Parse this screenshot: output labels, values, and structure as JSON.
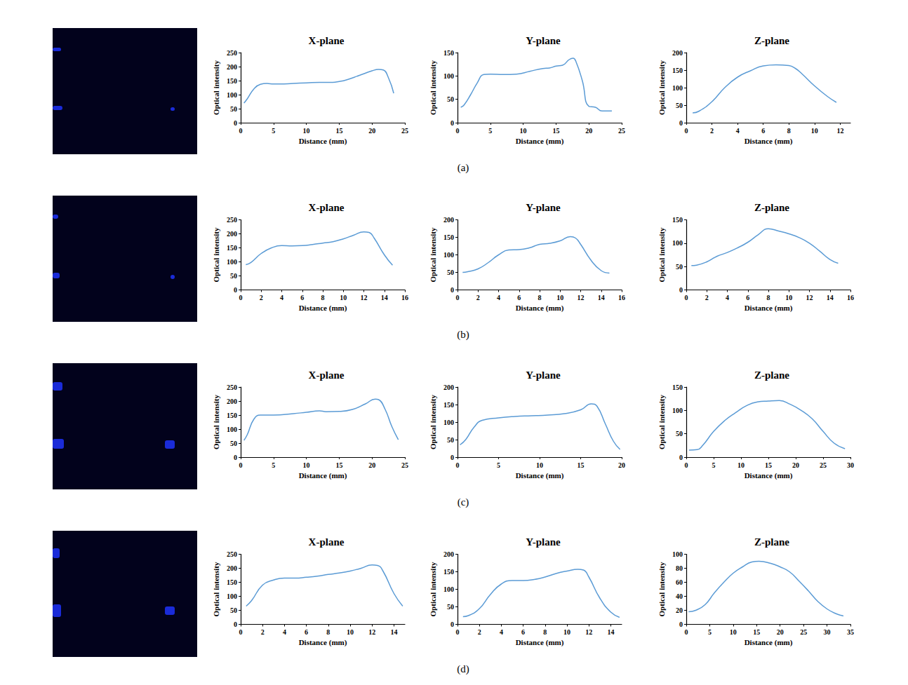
{
  "panel_labels": [
    "(a)",
    "(b)",
    "(c)",
    "(d)"
  ],
  "chart_data": [
    {
      "type": "line",
      "title": "X-plane",
      "xlabel": "Distance (mm)",
      "ylabel": "Optical intensity",
      "color": "#5b9bd5",
      "grid": false,
      "x": [
        0.5,
        1,
        2,
        3,
        4,
        5,
        6,
        8,
        10,
        12,
        14,
        15,
        16,
        18,
        20,
        21,
        21.7,
        22.5,
        23.3
      ],
      "values": [
        70,
        85,
        120,
        137,
        140,
        138,
        138,
        140,
        142,
        144,
        144,
        147,
        152,
        168,
        185,
        190,
        188,
        160,
        105
      ],
      "xlim": [
        0,
        25
      ],
      "xticks": [
        0,
        5,
        10,
        15,
        20,
        25
      ],
      "ylim": [
        0,
        250
      ],
      "yticks": [
        0,
        50,
        100,
        150,
        200,
        250
      ]
    },
    {
      "type": "line",
      "title": "Y-plane",
      "xlabel": "Distance (mm)",
      "ylabel": "Optical intensity",
      "color": "#5b9bd5",
      "grid": false,
      "x": [
        0.5,
        1,
        2,
        3,
        4,
        5,
        7,
        9,
        11,
        13,
        14,
        15,
        16,
        17,
        17.6,
        18,
        19,
        20,
        21,
        22,
        23.5
      ],
      "values": [
        33,
        38,
        60,
        85,
        103,
        104,
        103,
        104,
        110,
        116,
        117,
        121,
        123,
        135,
        138,
        132,
        90,
        35,
        33,
        25,
        25
      ],
      "xlim": [
        0,
        25
      ],
      "xticks": [
        0,
        5,
        10,
        15,
        20,
        25
      ],
      "ylim": [
        0,
        150
      ],
      "yticks": [
        0,
        50,
        100,
        150
      ]
    },
    {
      "type": "line",
      "title": "Z-plane",
      "xlabel": "Distance (mm)",
      "ylabel": "Optical intensity",
      "color": "#5b9bd5",
      "grid": false,
      "x": [
        0.5,
        1,
        2,
        3,
        4,
        5,
        6,
        7,
        8,
        8.5,
        9,
        10,
        11,
        11.7
      ],
      "values": [
        28,
        33,
        60,
        100,
        130,
        148,
        162,
        165,
        163,
        155,
        140,
        105,
        75,
        58
      ],
      "xlim": [
        0,
        12.8
      ],
      "xticks": [
        0,
        2,
        4,
        6,
        8,
        10,
        12
      ],
      "ylim": [
        0,
        200
      ],
      "yticks": [
        0,
        50,
        100,
        150,
        200
      ]
    },
    {
      "type": "line",
      "title": "X-plane",
      "xlabel": "Distance (mm)",
      "ylabel": "Optical intensity",
      "color": "#5b9bd5",
      "grid": false,
      "x": [
        0.5,
        1,
        2,
        3,
        4,
        5,
        6,
        7,
        8,
        9,
        10,
        11,
        12,
        12.5,
        13,
        14,
        14.8
      ],
      "values": [
        90,
        98,
        130,
        150,
        158,
        157,
        158,
        162,
        167,
        172,
        182,
        195,
        207,
        205,
        185,
        125,
        88
      ],
      "xlim": [
        0,
        16
      ],
      "xticks": [
        0,
        2,
        4,
        6,
        8,
        10,
        12,
        14,
        16
      ],
      "ylim": [
        0,
        250
      ],
      "yticks": [
        0,
        50,
        100,
        150,
        200,
        250
      ]
    },
    {
      "type": "line",
      "title": "Y-plane",
      "xlabel": "Distance (mm)",
      "ylabel": "Optical intensity",
      "color": "#5b9bd5",
      "grid": false,
      "x": [
        0.5,
        1,
        2,
        3,
        4,
        5,
        6,
        7,
        8,
        9,
        10,
        11,
        11.5,
        12,
        13,
        14,
        14.8
      ],
      "values": [
        50,
        52,
        60,
        78,
        100,
        114,
        115,
        120,
        130,
        133,
        140,
        152,
        148,
        130,
        85,
        55,
        48
      ],
      "xlim": [
        0,
        16
      ],
      "xticks": [
        0,
        2,
        4,
        6,
        8,
        10,
        12,
        14,
        16
      ],
      "ylim": [
        0,
        200
      ],
      "yticks": [
        0,
        50,
        100,
        150,
        200
      ]
    },
    {
      "type": "line",
      "title": "Z-plane",
      "xlabel": "Distance (mm)",
      "ylabel": "Optical intensity",
      "color": "#5b9bd5",
      "grid": false,
      "x": [
        0.5,
        1,
        2,
        3,
        4,
        5,
        6,
        7,
        8,
        9,
        10,
        11,
        12,
        13,
        14,
        14.8
      ],
      "values": [
        52,
        53,
        60,
        72,
        80,
        90,
        102,
        118,
        131,
        126,
        120,
        112,
        100,
        83,
        65,
        57
      ],
      "xlim": [
        0,
        16
      ],
      "xticks": [
        0,
        2,
        4,
        6,
        8,
        10,
        12,
        14,
        16
      ],
      "ylim": [
        0,
        150
      ],
      "yticks": [
        0,
        50,
        100,
        150
      ]
    },
    {
      "type": "line",
      "title": "X-plane",
      "xlabel": "Distance (mm)",
      "ylabel": "Optical intensity",
      "color": "#5b9bd5",
      "grid": false,
      "x": [
        0.5,
        1,
        2,
        3,
        5,
        8,
        10,
        12,
        13,
        15,
        17,
        19,
        20.5,
        21,
        22,
        23,
        24
      ],
      "values": [
        60,
        80,
        135,
        150,
        150,
        155,
        160,
        165,
        162,
        163,
        170,
        190,
        207,
        205,
        170,
        110,
        62
      ],
      "xlim": [
        0,
        25
      ],
      "xticks": [
        0,
        5,
        10,
        15,
        20,
        25
      ],
      "ylim": [
        0,
        250
      ],
      "yticks": [
        0,
        50,
        100,
        150,
        200,
        250
      ]
    },
    {
      "type": "line",
      "title": "Y-plane",
      "xlabel": "Distance (mm)",
      "ylabel": "Optical intensity",
      "color": "#5b9bd5",
      "grid": false,
      "x": [
        0.3,
        1,
        2,
        3,
        5,
        7,
        9,
        11,
        13,
        15,
        16.3,
        17,
        18,
        19,
        19.8
      ],
      "values": [
        35,
        50,
        85,
        105,
        112,
        116,
        118,
        120,
        124,
        135,
        152,
        145,
        95,
        45,
        22
      ],
      "xlim": [
        0,
        20
      ],
      "xticks": [
        0,
        5,
        10,
        15,
        20
      ],
      "ylim": [
        0,
        200
      ],
      "yticks": [
        0,
        50,
        100,
        150,
        200
      ]
    },
    {
      "type": "line",
      "title": "Z-plane",
      "xlabel": "Distance (mm)",
      "ylabel": "Optical intensity",
      "color": "#5b9bd5",
      "grid": false,
      "x": [
        0.5,
        2,
        3,
        5,
        7,
        9,
        11,
        13,
        15,
        17,
        19,
        21,
        23,
        25,
        27,
        29
      ],
      "values": [
        15,
        16,
        25,
        55,
        78,
        95,
        110,
        118,
        120,
        121,
        113,
        100,
        82,
        55,
        30,
        18
      ],
      "xlim": [
        0,
        30
      ],
      "xticks": [
        0,
        5,
        10,
        15,
        20,
        25,
        30
      ],
      "ylim": [
        0,
        150
      ],
      "yticks": [
        0,
        50,
        100,
        150
      ]
    },
    {
      "type": "line",
      "title": "X-plane",
      "xlabel": "Distance (mm)",
      "ylabel": "Optical intensity",
      "color": "#5b9bd5",
      "grid": false,
      "x": [
        0.5,
        1,
        2,
        3,
        4,
        5,
        6,
        7,
        8,
        9,
        10,
        11,
        12,
        12.5,
        13,
        14,
        14.8
      ],
      "values": [
        65,
        85,
        140,
        158,
        165,
        165,
        168,
        172,
        178,
        183,
        190,
        200,
        212,
        210,
        190,
        110,
        65
      ],
      "xlim": [
        0,
        15
      ],
      "xticks": [
        0,
        2,
        4,
        6,
        8,
        10,
        12,
        14
      ],
      "ylim": [
        0,
        250
      ],
      "yticks": [
        0,
        50,
        100,
        150,
        200,
        250
      ]
    },
    {
      "type": "line",
      "title": "Y-plane",
      "xlabel": "Distance (mm)",
      "ylabel": "Optical intensity",
      "color": "#5b9bd5",
      "grid": false,
      "x": [
        0.5,
        1,
        2,
        3,
        4,
        5,
        6,
        7,
        8,
        9,
        10,
        11,
        11.5,
        12,
        13,
        14,
        14.8
      ],
      "values": [
        22,
        25,
        45,
        85,
        115,
        125,
        125,
        128,
        135,
        145,
        152,
        157,
        155,
        135,
        75,
        35,
        20
      ],
      "xlim": [
        0,
        15
      ],
      "xticks": [
        0,
        2,
        4,
        6,
        8,
        10,
        12,
        14
      ],
      "ylim": [
        0,
        200
      ],
      "yticks": [
        0,
        50,
        100,
        150,
        200
      ]
    },
    {
      "type": "line",
      "title": "Z-plane",
      "xlabel": "Distance (mm)",
      "ylabel": "Optical intensity",
      "color": "#5b9bd5",
      "grid": false,
      "x": [
        0.5,
        2,
        4,
        6,
        8,
        10,
        12,
        14,
        15.5,
        18,
        20,
        22,
        24,
        26,
        28,
        30,
        32,
        33.5
      ],
      "values": [
        18,
        20,
        28,
        45,
        60,
        73,
        82,
        89,
        90,
        87,
        82,
        75,
        62,
        48,
        33,
        22,
        15,
        12
      ],
      "xlim": [
        0,
        35
      ],
      "xticks": [
        0,
        5,
        10,
        15,
        20,
        25,
        30,
        35
      ],
      "ylim": [
        0,
        100
      ],
      "yticks": [
        0,
        20,
        40,
        60,
        80,
        100
      ]
    }
  ]
}
